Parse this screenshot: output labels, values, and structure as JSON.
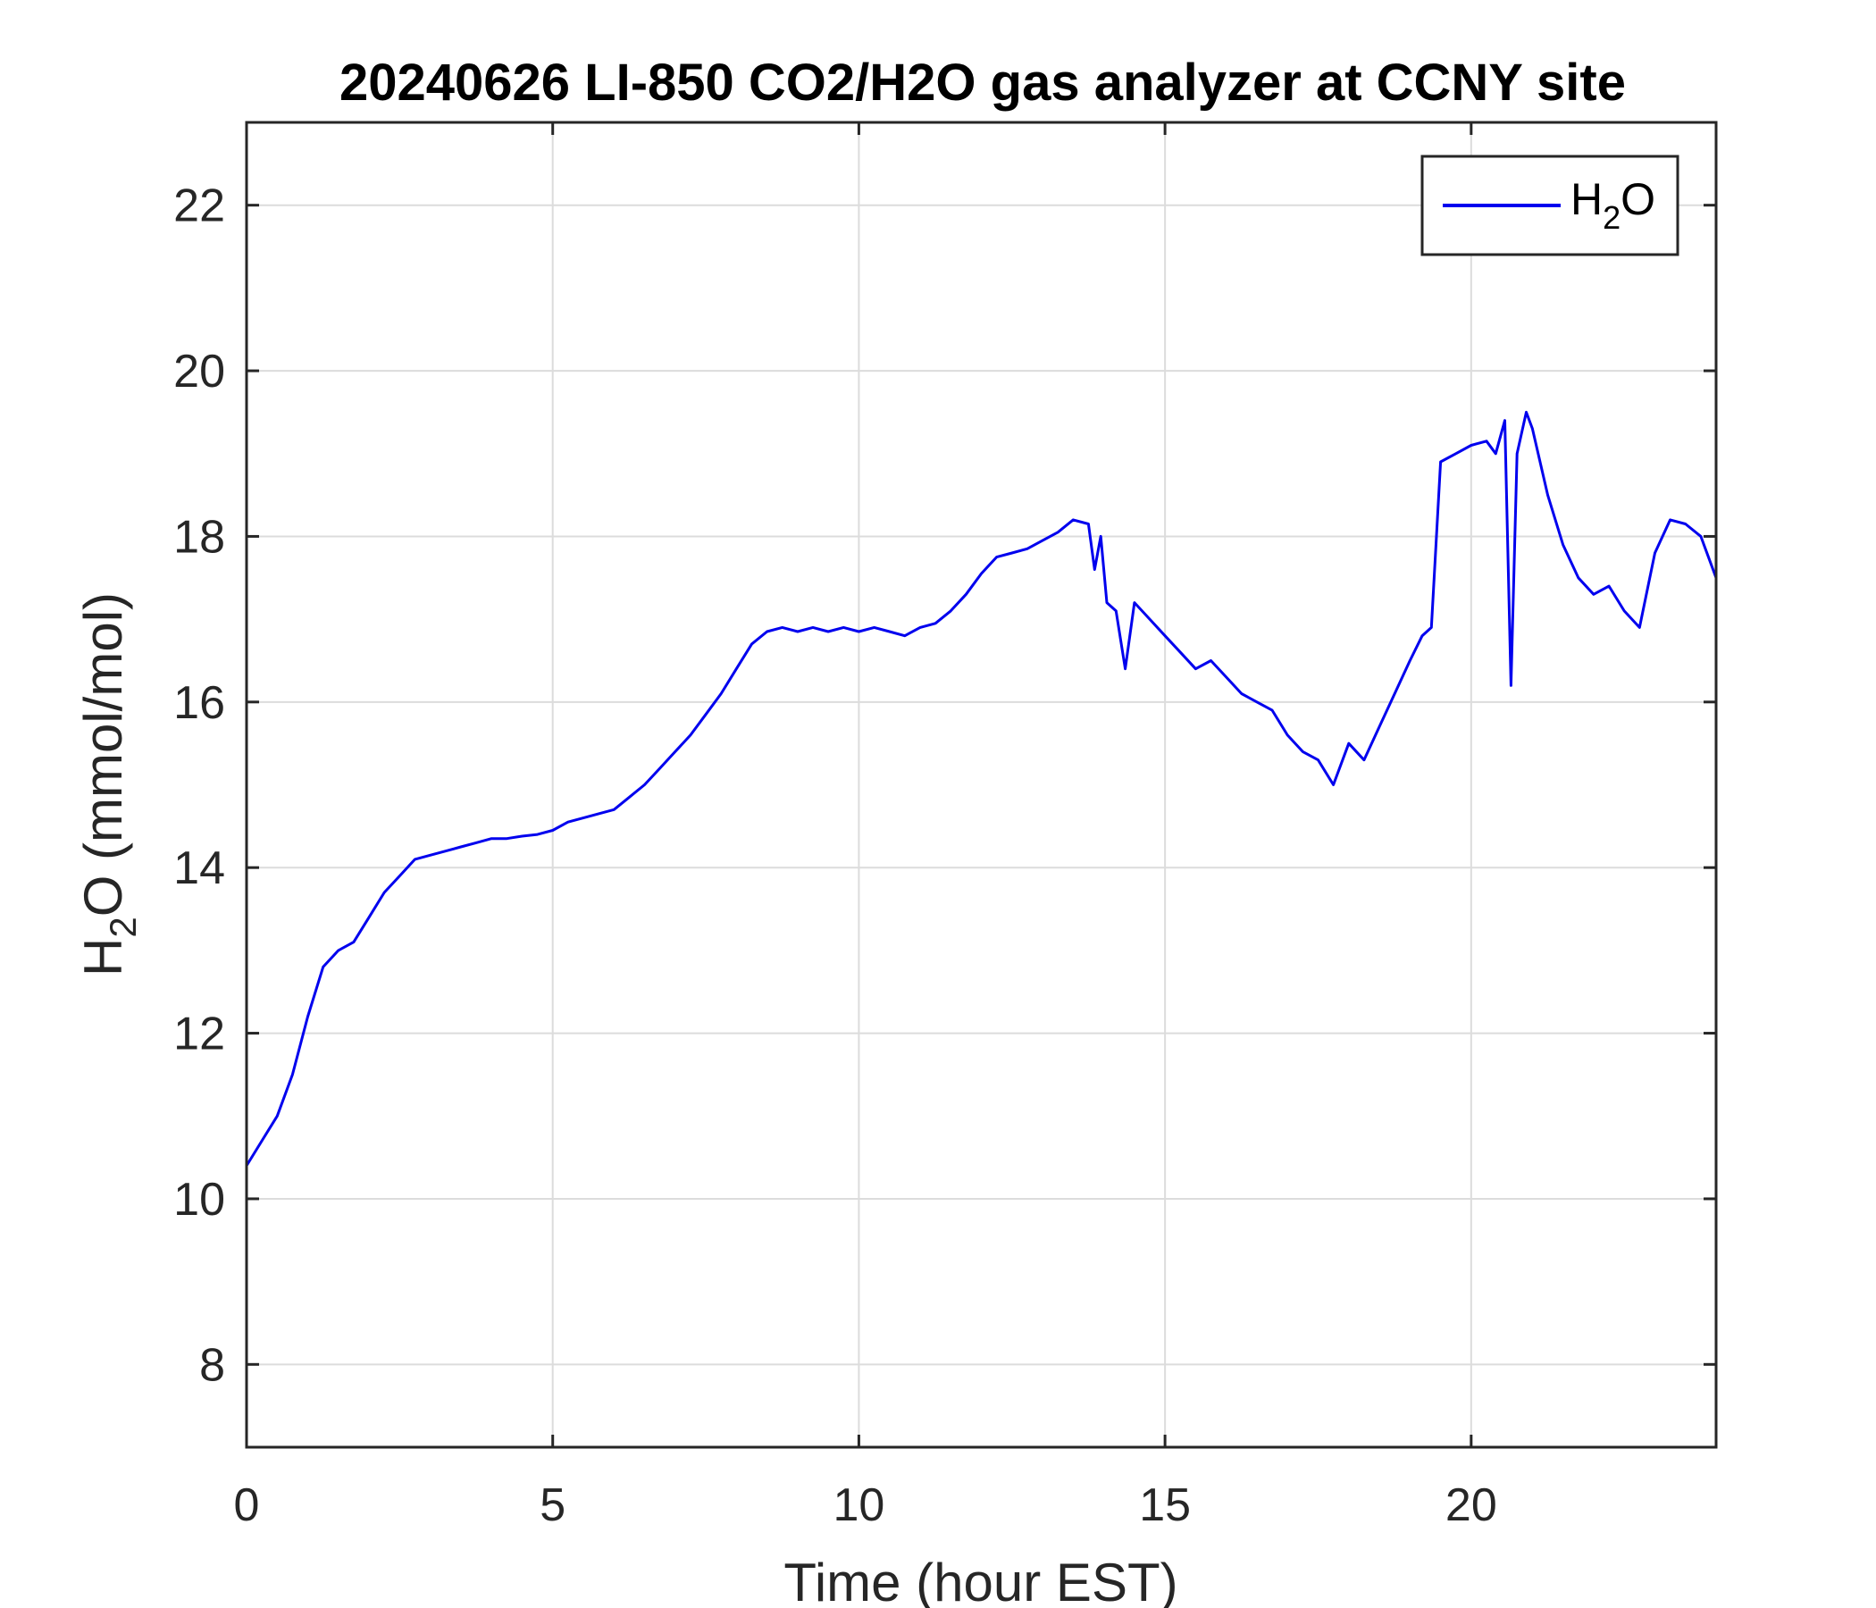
{
  "chart_data": {
    "type": "line",
    "title": "20240626 LI-850 CO2/H2O gas analyzer at CCNY site",
    "xlabel": "Time (hour EST)",
    "ylabel": "H2O (mmol/mol)",
    "xlim": [
      0,
      24
    ],
    "ylim": [
      7,
      23
    ],
    "xticks": [
      0,
      5,
      10,
      15,
      20
    ],
    "yticks": [
      8,
      10,
      12,
      14,
      16,
      18,
      20,
      22
    ],
    "grid": true,
    "legend": "top-right",
    "series": [
      {
        "name": "H2O",
        "color": "#0000ee",
        "x": [
          0,
          0.25,
          0.5,
          0.75,
          1.0,
          1.25,
          1.5,
          1.75,
          2.0,
          2.25,
          2.5,
          2.75,
          3.0,
          3.25,
          3.5,
          3.75,
          4.0,
          4.25,
          4.5,
          4.75,
          5.0,
          5.25,
          5.5,
          5.75,
          6.0,
          6.25,
          6.5,
          6.75,
          7.0,
          7.25,
          7.5,
          7.75,
          8.0,
          8.25,
          8.5,
          8.75,
          9.0,
          9.25,
          9.5,
          9.75,
          10.0,
          10.25,
          10.5,
          10.75,
          11.0,
          11.25,
          11.5,
          11.75,
          12.0,
          12.25,
          12.5,
          12.75,
          13.0,
          13.25,
          13.5,
          13.75,
          13.85,
          13.95,
          14.05,
          14.2,
          14.35,
          14.5,
          14.75,
          15.0,
          15.25,
          15.5,
          15.75,
          16.0,
          16.25,
          16.5,
          16.75,
          17.0,
          17.25,
          17.5,
          17.75,
          18.0,
          18.25,
          18.5,
          18.75,
          19.0,
          19.2,
          19.35,
          19.5,
          19.75,
          20.0,
          20.25,
          20.4,
          20.55,
          20.65,
          20.75,
          20.9,
          21.0,
          21.25,
          21.5,
          21.75,
          22.0,
          22.25,
          22.5,
          22.75,
          23.0,
          23.25,
          23.5,
          23.75,
          24.0
        ],
        "y": [
          10.4,
          10.7,
          11.0,
          11.5,
          12.2,
          12.8,
          13.0,
          13.1,
          13.4,
          13.7,
          13.9,
          14.1,
          14.15,
          14.2,
          14.25,
          14.3,
          14.35,
          14.35,
          14.38,
          14.4,
          14.45,
          14.55,
          14.6,
          14.65,
          14.7,
          14.85,
          15.0,
          15.2,
          15.4,
          15.6,
          15.85,
          16.1,
          16.4,
          16.7,
          16.85,
          16.9,
          16.85,
          16.9,
          16.85,
          16.9,
          16.85,
          16.9,
          16.85,
          16.8,
          16.9,
          16.95,
          17.1,
          17.3,
          17.55,
          17.75,
          17.8,
          17.85,
          17.95,
          18.05,
          18.2,
          18.15,
          17.6,
          18.0,
          17.2,
          17.1,
          16.4,
          17.2,
          17.0,
          16.8,
          16.6,
          16.4,
          16.5,
          16.3,
          16.1,
          16.0,
          15.9,
          15.6,
          15.4,
          15.3,
          15.0,
          15.5,
          15.3,
          15.7,
          16.1,
          16.5,
          16.8,
          16.9,
          18.9,
          19.0,
          19.1,
          19.15,
          19.0,
          19.4,
          16.2,
          19.0,
          19.5,
          19.3,
          18.5,
          17.9,
          17.5,
          17.3,
          17.4,
          17.1,
          16.9,
          17.8,
          18.2,
          18.15,
          18.0,
          17.5
        ]
      }
    ]
  },
  "legend": {
    "label": "H",
    "subscript": "2",
    "suffix": "O"
  },
  "ylabel_parts": {
    "label": "H",
    "subscript": "2",
    "suffix": "O (mmol/mol)"
  }
}
